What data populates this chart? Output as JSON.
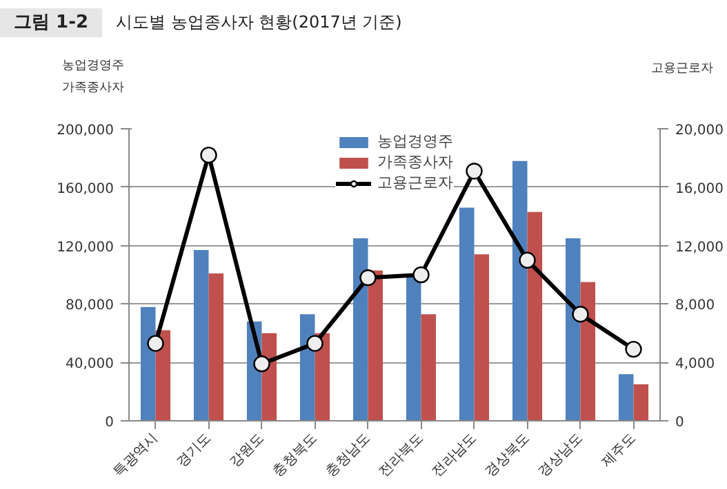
{
  "chart_data": {
    "type": "bar",
    "title": "그림 1-2",
    "subtitle": "시도별 농업종사자 현황(2017년 기준)",
    "ylabel": "농업경영주\n가족종사자",
    "y2label": "고용근로자",
    "categories": [
      "특광역시",
      "경기도",
      "강원도",
      "충청북도",
      "충청남도",
      "전라북도",
      "전라남도",
      "경상북도",
      "경상남도",
      "제주도"
    ],
    "series": [
      {
        "name": "농업경영주",
        "color": "#4f81bd",
        "values": [
          78000,
          117000,
          68000,
          73000,
          125000,
          101000,
          146000,
          178000,
          125000,
          32000
        ]
      },
      {
        "name": "가족종사자",
        "color": "#c0504d",
        "values": [
          62000,
          101000,
          60000,
          60000,
          103000,
          73000,
          114000,
          143000,
          95000,
          25000
        ]
      },
      {
        "name": "고용근로자",
        "type": "line",
        "axis": "y2",
        "color": "#000000",
        "marker": "circle",
        "values": [
          5300,
          18200,
          3900,
          5300,
          9800,
          10000,
          17100,
          11000,
          7300,
          4900
        ]
      }
    ],
    "ylim": [
      0,
      200000
    ],
    "yticks": [
      0,
      {
        "value": 40000,
        "label": "40,000"
      },
      {
        "value": 80000,
        "label": "80,000"
      },
      {
        "value": 120000,
        "label": "120,000"
      },
      {
        "value": 160000,
        "label": "160,000"
      },
      {
        "value": 200000,
        "label": "200,000"
      }
    ],
    "y2lim": [
      0,
      20000
    ],
    "y2ticks": [
      0,
      {
        "value": 4000,
        "label": "4,000"
      },
      {
        "value": 8000,
        "label": "8,000"
      },
      {
        "value": 12000,
        "label": "12,000"
      },
      {
        "value": 16000,
        "label": "16,000"
      },
      {
        "value": 20000,
        "label": "20,000"
      }
    ],
    "grid": "y",
    "legend": "top"
  }
}
